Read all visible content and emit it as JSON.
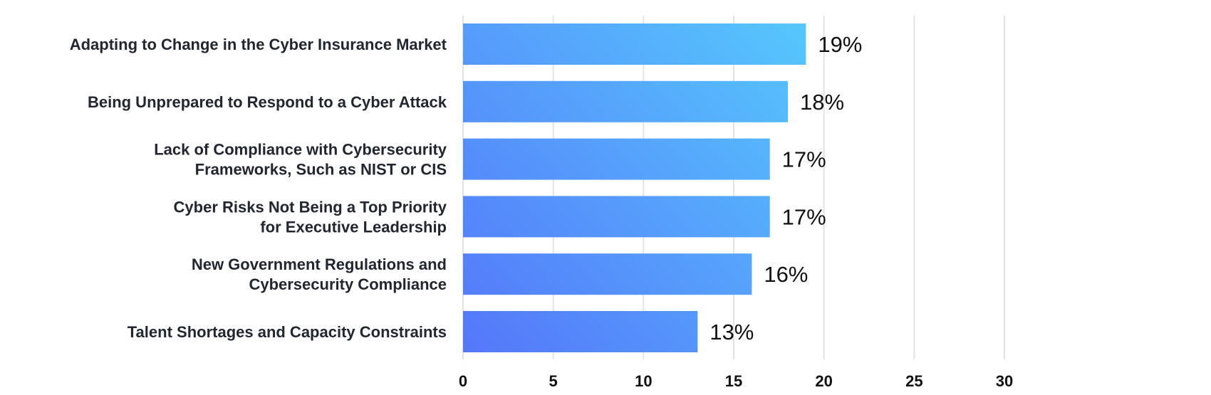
{
  "chart_data": {
    "type": "bar",
    "orientation": "horizontal",
    "categories": [
      [
        "Adapting to Change in the Cyber Insurance Market"
      ],
      [
        "Being Unprepared to Respond to a Cyber Attack"
      ],
      [
        "Lack of Compliance with Cybersecurity",
        "Frameworks, Such as NIST or CIS"
      ],
      [
        "Cyber Risks Not Being a Top Priority",
        "for Executive Leadership"
      ],
      [
        "New Government Regulations and",
        "Cybersecurity Compliance"
      ],
      [
        "Talent Shortages and Capacity Constraints"
      ]
    ],
    "values": [
      19,
      18,
      17,
      17,
      16,
      13
    ],
    "value_labels": [
      "19%",
      "18%",
      "17%",
      "17%",
      "16%",
      "13%"
    ],
    "xlim": [
      0,
      30
    ],
    "xticks": [
      0,
      5,
      10,
      15,
      20,
      25,
      30
    ],
    "xtick_labels": [
      "0",
      "5",
      "10",
      "15",
      "20",
      "25",
      "30"
    ],
    "grid": "vertical",
    "legend": "none",
    "colors": {
      "bar_gradient_start": "#5577FA",
      "bar_gradient_end": "#56C7FD",
      "grid": "#E3E3E3",
      "category_text": "#222630",
      "value_text": "#111111"
    }
  }
}
